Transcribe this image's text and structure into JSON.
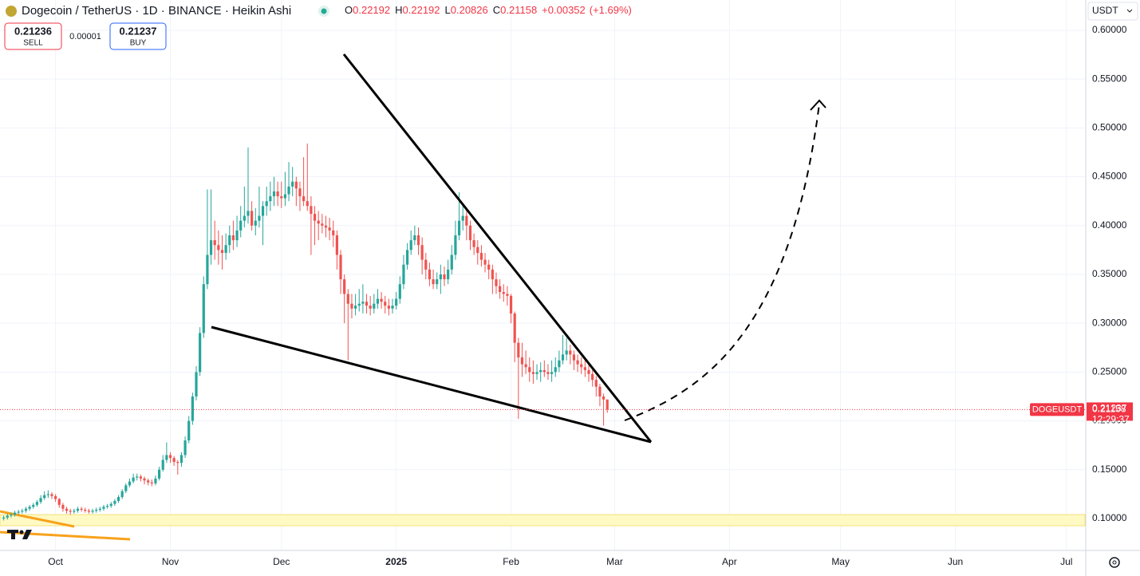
{
  "header": {
    "title": "Dogecoin / TetherUS · 1D · BINANCE · Heikin Ashi",
    "o_label": "O",
    "open": 0.22192,
    "h_label": "H",
    "high": 0.22192,
    "l_label": "L",
    "low": 0.20826,
    "c_label": "C",
    "close": 0.21158,
    "change": "+0.00352",
    "change_pct": "(+1.69%)",
    "sell_price": 0.21236,
    "sell_label": "SELL",
    "spread": 1e-05,
    "buy_price": 0.21237,
    "buy_label": "BUY",
    "currency": "USDT"
  },
  "chart_data": {
    "type": "candlestick",
    "up_color": "#26a69a",
    "down_color": "#ef5350",
    "grid": true,
    "ylim": [
      0.0673,
      0.631
    ],
    "yticks": [
      {
        "value": 0.1,
        "label": "0.10000"
      },
      {
        "value": 0.15,
        "label": "0.15000"
      },
      {
        "value": 0.2,
        "label": "0.20000"
      },
      {
        "value": 0.25,
        "label": "0.25000"
      },
      {
        "value": 0.3,
        "label": "0.30000"
      },
      {
        "value": 0.35,
        "label": "0.35000"
      },
      {
        "value": 0.4,
        "label": "0.40000"
      },
      {
        "value": 0.45,
        "label": "0.45000"
      },
      {
        "value": 0.5,
        "label": "0.50000"
      },
      {
        "value": 0.55,
        "label": "0.55000"
      },
      {
        "value": 0.6,
        "label": "0.60000"
      }
    ],
    "xlim": [
      "2024-09-16",
      "2025-07-06"
    ],
    "xticks": [
      {
        "value": "2024-10-01",
        "label": "Oct"
      },
      {
        "value": "2024-11-01",
        "label": "Nov"
      },
      {
        "value": "2024-12-01",
        "label": "Dec"
      },
      {
        "value": "2025-01-01",
        "label": "2025"
      },
      {
        "value": "2025-02-01",
        "label": "Feb"
      },
      {
        "value": "2025-03-01",
        "label": "Mar"
      },
      {
        "value": "2025-04-01",
        "label": "Apr"
      },
      {
        "value": "2025-05-01",
        "label": "May"
      },
      {
        "value": "2025-06-01",
        "label": "Jun"
      },
      {
        "value": "2025-07-01",
        "label": "Jul"
      }
    ],
    "price_line": {
      "value": 0.21158,
      "ask": 0.21237,
      "symbol": "DOGEUSDT",
      "countdown": "12:29:37",
      "color": "#f23645"
    },
    "x": [
      "2024-09-17",
      "2024-09-18",
      "2024-09-19",
      "2024-09-20",
      "2024-09-21",
      "2024-09-22",
      "2024-09-23",
      "2024-09-24",
      "2024-09-25",
      "2024-09-26",
      "2024-09-27",
      "2024-09-28",
      "2024-09-29",
      "2024-09-30",
      "2024-10-01",
      "2024-10-02",
      "2024-10-03",
      "2024-10-04",
      "2024-10-05",
      "2024-10-06",
      "2024-10-07",
      "2024-10-08",
      "2024-10-09",
      "2024-10-10",
      "2024-10-11",
      "2024-10-12",
      "2024-10-13",
      "2024-10-14",
      "2024-10-15",
      "2024-10-16",
      "2024-10-17",
      "2024-10-18",
      "2024-10-19",
      "2024-10-20",
      "2024-10-21",
      "2024-10-22",
      "2024-10-23",
      "2024-10-24",
      "2024-10-25",
      "2024-10-26",
      "2024-10-27",
      "2024-10-28",
      "2024-10-29",
      "2024-10-30",
      "2024-10-31",
      "2024-11-01",
      "2024-11-02",
      "2024-11-03",
      "2024-11-04",
      "2024-11-05",
      "2024-11-06",
      "2024-11-07",
      "2024-11-08",
      "2024-11-09",
      "2024-11-10",
      "2024-11-11",
      "2024-11-12",
      "2024-11-13",
      "2024-11-14",
      "2024-11-15",
      "2024-11-16",
      "2024-11-17",
      "2024-11-18",
      "2024-11-19",
      "2024-11-20",
      "2024-11-21",
      "2024-11-22",
      "2024-11-23",
      "2024-11-24",
      "2024-11-25",
      "2024-11-26",
      "2024-11-27",
      "2024-11-28",
      "2024-11-29",
      "2024-11-30",
      "2024-12-01",
      "2024-12-02",
      "2024-12-03",
      "2024-12-04",
      "2024-12-05",
      "2024-12-06",
      "2024-12-07",
      "2024-12-08",
      "2024-12-09",
      "2024-12-10",
      "2024-12-11",
      "2024-12-12",
      "2024-12-13",
      "2024-12-14",
      "2024-12-15",
      "2024-12-16",
      "2024-12-17",
      "2024-12-18",
      "2024-12-19",
      "2024-12-20",
      "2024-12-21",
      "2024-12-22",
      "2024-12-23",
      "2024-12-24",
      "2024-12-25",
      "2024-12-26",
      "2024-12-27",
      "2024-12-28",
      "2024-12-29",
      "2024-12-30",
      "2024-12-31",
      "2025-01-01",
      "2025-01-02",
      "2025-01-03",
      "2025-01-04",
      "2025-01-05",
      "2025-01-06",
      "2025-01-07",
      "2025-01-08",
      "2025-01-09",
      "2025-01-10",
      "2025-01-11",
      "2025-01-12",
      "2025-01-13",
      "2025-01-14",
      "2025-01-15",
      "2025-01-16",
      "2025-01-17",
      "2025-01-18",
      "2025-01-19",
      "2025-01-20",
      "2025-01-21",
      "2025-01-22",
      "2025-01-23",
      "2025-01-24",
      "2025-01-25",
      "2025-01-26",
      "2025-01-27",
      "2025-01-28",
      "2025-01-29",
      "2025-01-30",
      "2025-01-31",
      "2025-02-01",
      "2025-02-02",
      "2025-02-03",
      "2025-02-04",
      "2025-02-05",
      "2025-02-06",
      "2025-02-07",
      "2025-02-08",
      "2025-02-09",
      "2025-02-10",
      "2025-02-11",
      "2025-02-12",
      "2025-02-13",
      "2025-02-14",
      "2025-02-15",
      "2025-02-16",
      "2025-02-17",
      "2025-02-18",
      "2025-02-19",
      "2025-02-20",
      "2025-02-21",
      "2025-02-22",
      "2025-02-23",
      "2025-02-24",
      "2025-02-25",
      "2025-02-26",
      "2025-02-27"
    ],
    "ohlc": [
      [
        0.1,
        0.103,
        0.098,
        0.101
      ],
      [
        0.101,
        0.105,
        0.099,
        0.103
      ],
      [
        0.103,
        0.106,
        0.101,
        0.104
      ],
      [
        0.104,
        0.108,
        0.102,
        0.106
      ],
      [
        0.106,
        0.109,
        0.104,
        0.107
      ],
      [
        0.107,
        0.11,
        0.105,
        0.108
      ],
      [
        0.108,
        0.112,
        0.106,
        0.11
      ],
      [
        0.11,
        0.114,
        0.108,
        0.112
      ],
      [
        0.112,
        0.116,
        0.11,
        0.114
      ],
      [
        0.114,
        0.119,
        0.112,
        0.117
      ],
      [
        0.117,
        0.124,
        0.115,
        0.121
      ],
      [
        0.121,
        0.128,
        0.119,
        0.124
      ],
      [
        0.124,
        0.129,
        0.121,
        0.125
      ],
      [
        0.125,
        0.127,
        0.12,
        0.123
      ],
      [
        0.123,
        0.125,
        0.117,
        0.12
      ],
      [
        0.12,
        0.121,
        0.111,
        0.114
      ],
      [
        0.114,
        0.116,
        0.107,
        0.11
      ],
      [
        0.11,
        0.112,
        0.105,
        0.108
      ],
      [
        0.108,
        0.11,
        0.104,
        0.107
      ],
      [
        0.107,
        0.11,
        0.105,
        0.108
      ],
      [
        0.108,
        0.112,
        0.106,
        0.11
      ],
      [
        0.11,
        0.112,
        0.107,
        0.109
      ],
      [
        0.109,
        0.111,
        0.106,
        0.108
      ],
      [
        0.108,
        0.11,
        0.105,
        0.107
      ],
      [
        0.107,
        0.11,
        0.105,
        0.108
      ],
      [
        0.108,
        0.111,
        0.106,
        0.109
      ],
      [
        0.109,
        0.112,
        0.107,
        0.11
      ],
      [
        0.11,
        0.114,
        0.108,
        0.112
      ],
      [
        0.112,
        0.115,
        0.11,
        0.113
      ],
      [
        0.113,
        0.117,
        0.111,
        0.115
      ],
      [
        0.115,
        0.12,
        0.113,
        0.118
      ],
      [
        0.118,
        0.124,
        0.116,
        0.122
      ],
      [
        0.122,
        0.13,
        0.12,
        0.128
      ],
      [
        0.128,
        0.136,
        0.126,
        0.134
      ],
      [
        0.134,
        0.141,
        0.132,
        0.138
      ],
      [
        0.138,
        0.146,
        0.136,
        0.142
      ],
      [
        0.142,
        0.146,
        0.139,
        0.143
      ],
      [
        0.143,
        0.145,
        0.138,
        0.141
      ],
      [
        0.141,
        0.143,
        0.135,
        0.139
      ],
      [
        0.139,
        0.141,
        0.134,
        0.137
      ],
      [
        0.137,
        0.14,
        0.133,
        0.136
      ],
      [
        0.136,
        0.144,
        0.134,
        0.141
      ],
      [
        0.141,
        0.153,
        0.139,
        0.15
      ],
      [
        0.15,
        0.165,
        0.148,
        0.16
      ],
      [
        0.16,
        0.178,
        0.157,
        0.165
      ],
      [
        0.165,
        0.168,
        0.157,
        0.162
      ],
      [
        0.162,
        0.164,
        0.154,
        0.158
      ],
      [
        0.158,
        0.16,
        0.145,
        0.157
      ],
      [
        0.157,
        0.168,
        0.153,
        0.165
      ],
      [
        0.165,
        0.184,
        0.162,
        0.18
      ],
      [
        0.18,
        0.205,
        0.177,
        0.2
      ],
      [
        0.2,
        0.229,
        0.196,
        0.225
      ],
      [
        0.225,
        0.256,
        0.221,
        0.25
      ],
      [
        0.25,
        0.296,
        0.246,
        0.29
      ],
      [
        0.29,
        0.348,
        0.285,
        0.34
      ],
      [
        0.34,
        0.437,
        0.335,
        0.37
      ],
      [
        0.37,
        0.437,
        0.36,
        0.385
      ],
      [
        0.385,
        0.405,
        0.365,
        0.38
      ],
      [
        0.38,
        0.395,
        0.36,
        0.375
      ],
      [
        0.375,
        0.39,
        0.355,
        0.372
      ],
      [
        0.372,
        0.392,
        0.365,
        0.38
      ],
      [
        0.38,
        0.4,
        0.372,
        0.39
      ],
      [
        0.39,
        0.405,
        0.375,
        0.385
      ],
      [
        0.385,
        0.41,
        0.378,
        0.395
      ],
      [
        0.395,
        0.42,
        0.388,
        0.405
      ],
      [
        0.405,
        0.44,
        0.398,
        0.41
      ],
      [
        0.41,
        0.48,
        0.402,
        0.415
      ],
      [
        0.415,
        0.425,
        0.395,
        0.4
      ],
      [
        0.4,
        0.418,
        0.39,
        0.405
      ],
      [
        0.405,
        0.44,
        0.398,
        0.41
      ],
      [
        0.41,
        0.425,
        0.38,
        0.42
      ],
      [
        0.42,
        0.44,
        0.41,
        0.425
      ],
      [
        0.425,
        0.445,
        0.415,
        0.43
      ],
      [
        0.43,
        0.45,
        0.42,
        0.435
      ],
      [
        0.435,
        0.445,
        0.42,
        0.43
      ],
      [
        0.43,
        0.445,
        0.418,
        0.428
      ],
      [
        0.428,
        0.455,
        0.42,
        0.432
      ],
      [
        0.432,
        0.465,
        0.425,
        0.44
      ],
      [
        0.44,
        0.46,
        0.43,
        0.445
      ],
      [
        0.445,
        0.45,
        0.42,
        0.438
      ],
      [
        0.438,
        0.445,
        0.415,
        0.43
      ],
      [
        0.43,
        0.47,
        0.42,
        0.425
      ],
      [
        0.425,
        0.484,
        0.415,
        0.42
      ],
      [
        0.42,
        0.43,
        0.37,
        0.412
      ],
      [
        0.412,
        0.42,
        0.38,
        0.405
      ],
      [
        0.405,
        0.415,
        0.385,
        0.402
      ],
      [
        0.402,
        0.412,
        0.392,
        0.4
      ],
      [
        0.4,
        0.41,
        0.388,
        0.398
      ],
      [
        0.398,
        0.408,
        0.385,
        0.395
      ],
      [
        0.395,
        0.405,
        0.378,
        0.39
      ],
      [
        0.39,
        0.395,
        0.355,
        0.37
      ],
      [
        0.37,
        0.375,
        0.33,
        0.345
      ],
      [
        0.345,
        0.35,
        0.3,
        0.33
      ],
      [
        0.33,
        0.335,
        0.262,
        0.32
      ],
      [
        0.32,
        0.33,
        0.305,
        0.315
      ],
      [
        0.315,
        0.33,
        0.308,
        0.318
      ],
      [
        0.318,
        0.335,
        0.312,
        0.32
      ],
      [
        0.32,
        0.34,
        0.31,
        0.322
      ],
      [
        0.322,
        0.33,
        0.31,
        0.318
      ],
      [
        0.318,
        0.328,
        0.308,
        0.315
      ],
      [
        0.315,
        0.33,
        0.31,
        0.32
      ],
      [
        0.32,
        0.335,
        0.315,
        0.325
      ],
      [
        0.325,
        0.332,
        0.315,
        0.322
      ],
      [
        0.322,
        0.328,
        0.31,
        0.318
      ],
      [
        0.318,
        0.325,
        0.308,
        0.315
      ],
      [
        0.315,
        0.325,
        0.31,
        0.318
      ],
      [
        0.318,
        0.332,
        0.314,
        0.325
      ],
      [
        0.325,
        0.348,
        0.32,
        0.34
      ],
      [
        0.34,
        0.37,
        0.335,
        0.36
      ],
      [
        0.36,
        0.382,
        0.355,
        0.375
      ],
      [
        0.375,
        0.395,
        0.37,
        0.385
      ],
      [
        0.385,
        0.4,
        0.38,
        0.39
      ],
      [
        0.39,
        0.398,
        0.37,
        0.38
      ],
      [
        0.38,
        0.388,
        0.35,
        0.365
      ],
      [
        0.365,
        0.372,
        0.345,
        0.355
      ],
      [
        0.355,
        0.362,
        0.338,
        0.345
      ],
      [
        0.345,
        0.355,
        0.335,
        0.34
      ],
      [
        0.34,
        0.352,
        0.335,
        0.345
      ],
      [
        0.345,
        0.36,
        0.33,
        0.35
      ],
      [
        0.35,
        0.358,
        0.338,
        0.345
      ],
      [
        0.345,
        0.365,
        0.34,
        0.355
      ],
      [
        0.355,
        0.38,
        0.35,
        0.37
      ],
      [
        0.37,
        0.405,
        0.365,
        0.39
      ],
      [
        0.39,
        0.434,
        0.385,
        0.405
      ],
      [
        0.405,
        0.42,
        0.395,
        0.41
      ],
      [
        0.41,
        0.415,
        0.385,
        0.4
      ],
      [
        0.4,
        0.405,
        0.375,
        0.385
      ],
      [
        0.385,
        0.392,
        0.37,
        0.378
      ],
      [
        0.378,
        0.385,
        0.36,
        0.372
      ],
      [
        0.372,
        0.38,
        0.358,
        0.365
      ],
      [
        0.365,
        0.372,
        0.352,
        0.36
      ],
      [
        0.36,
        0.365,
        0.345,
        0.355
      ],
      [
        0.355,
        0.36,
        0.33,
        0.345
      ],
      [
        0.345,
        0.352,
        0.33,
        0.338
      ],
      [
        0.338,
        0.345,
        0.325,
        0.332
      ],
      [
        0.332,
        0.34,
        0.322,
        0.33
      ],
      [
        0.33,
        0.338,
        0.318,
        0.328
      ],
      [
        0.328,
        0.33,
        0.3,
        0.31
      ],
      [
        0.31,
        0.312,
        0.26,
        0.28
      ],
      [
        0.28,
        0.285,
        0.202,
        0.265
      ],
      [
        0.265,
        0.28,
        0.245,
        0.258
      ],
      [
        0.258,
        0.272,
        0.248,
        0.255
      ],
      [
        0.255,
        0.265,
        0.24,
        0.25
      ],
      [
        0.25,
        0.262,
        0.238,
        0.248
      ],
      [
        0.248,
        0.258,
        0.242,
        0.25
      ],
      [
        0.25,
        0.26,
        0.24,
        0.252
      ],
      [
        0.252,
        0.262,
        0.245,
        0.25
      ],
      [
        0.25,
        0.258,
        0.242,
        0.248
      ],
      [
        0.248,
        0.262,
        0.24,
        0.25
      ],
      [
        0.25,
        0.265,
        0.245,
        0.255
      ],
      [
        0.255,
        0.272,
        0.25,
        0.262
      ],
      [
        0.262,
        0.288,
        0.258,
        0.268
      ],
      [
        0.268,
        0.285,
        0.262,
        0.272
      ],
      [
        0.272,
        0.278,
        0.258,
        0.268
      ],
      [
        0.268,
        0.272,
        0.252,
        0.262
      ],
      [
        0.262,
        0.268,
        0.25,
        0.258
      ],
      [
        0.258,
        0.265,
        0.248,
        0.255
      ],
      [
        0.255,
        0.262,
        0.245,
        0.252
      ],
      [
        0.252,
        0.258,
        0.24,
        0.248
      ],
      [
        0.248,
        0.252,
        0.235,
        0.242
      ],
      [
        0.242,
        0.246,
        0.225,
        0.235
      ],
      [
        0.235,
        0.238,
        0.215,
        0.225
      ],
      [
        0.225,
        0.228,
        0.195,
        0.22192
      ],
      [
        0.22192,
        0.22192,
        0.20826,
        0.21158
      ]
    ]
  }
}
